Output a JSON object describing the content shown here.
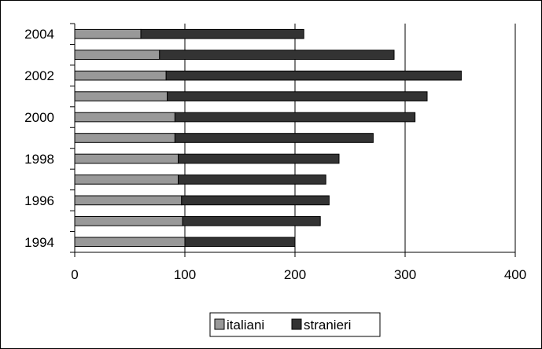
{
  "chart_data": {
    "type": "bar",
    "orientation": "horizontal",
    "stacked": true,
    "categories": [
      "1994",
      "1995",
      "1996",
      "1997",
      "1998",
      "1999",
      "2000",
      "2001",
      "2002",
      "2003",
      "2004"
    ],
    "y_tick_labels": [
      "1994",
      "1996",
      "1998",
      "2000",
      "2002",
      "2004"
    ],
    "series": [
      {
        "name": "italiani",
        "color": "#999999",
        "values": [
          100,
          98,
          97,
          94,
          94,
          91,
          91,
          84,
          83,
          77,
          60
        ]
      },
      {
        "name": "stranieri",
        "color": "#333333",
        "values": [
          100,
          125,
          134,
          134,
          146,
          180,
          218,
          236,
          268,
          213,
          148
        ]
      }
    ],
    "xlim": [
      0,
      400
    ],
    "x_ticks": [
      0,
      100,
      200,
      300,
      400
    ],
    "grid": "vertical",
    "legend": "bottom"
  }
}
